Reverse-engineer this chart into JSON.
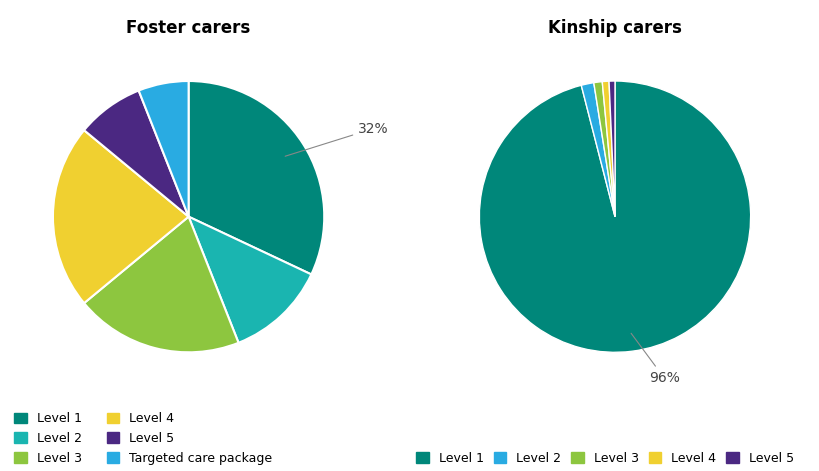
{
  "foster_title": "Foster carers",
  "kinship_title": "Kinship carers",
  "foster_values": [
    32,
    12,
    20,
    22,
    8,
    6
  ],
  "foster_labels": [
    "Level 1",
    "Level 2",
    "Level 3",
    "Level 4",
    "Level 5",
    "Targeted care package"
  ],
  "foster_colors": [
    "#00877a",
    "#1ab5b0",
    "#8dc63f",
    "#f0d030",
    "#4b2882",
    "#29abe2"
  ],
  "foster_annotation": "32%",
  "foster_startangle": 90,
  "kinship_values": [
    96,
    1.5,
    1.0,
    0.8,
    0.7
  ],
  "kinship_labels": [
    "Level 1",
    "Level 2",
    "Level 3",
    "Level 4",
    "Level 5"
  ],
  "kinship_colors": [
    "#00877a",
    "#29abe2",
    "#8dc63f",
    "#f0d030",
    "#4b2882"
  ],
  "kinship_annotation": "96%",
  "kinship_startangle": 90,
  "background_color": "#ffffff",
  "title_fontsize": 12,
  "legend_fontsize": 9,
  "annotation_fontsize": 10
}
